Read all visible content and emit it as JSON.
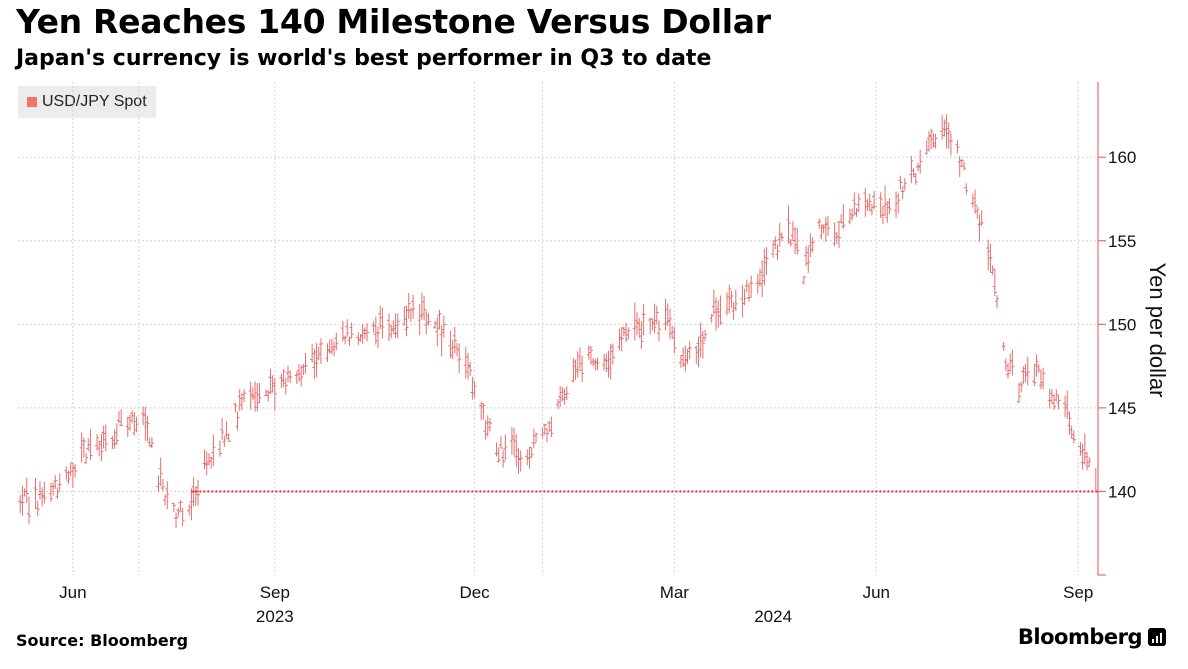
{
  "header": {
    "title": "Yen Reaches 140 Milestone Versus Dollar",
    "subtitle": "Japan's currency is world's best performer in Q3 to date"
  },
  "legend": {
    "label": "USD/JPY Spot",
    "color": "#f07070"
  },
  "footer": {
    "source": "Source: Bloomberg",
    "brand": "Bloomberg",
    "brand_icon": "bloomberg-terminal-icon"
  },
  "colors": {
    "series": "#e46f6f",
    "reference": "#e0303c",
    "axis": "#e46f6f",
    "grid": "#d4d4d4"
  },
  "chart_data": {
    "type": "line",
    "style": "high-low-bars",
    "title": "Yen Reaches 140 Milestone Versus Dollar",
    "subtitle": "Japan's currency is world's best performer in Q3 to date",
    "xlabel": "",
    "ylabel": "Yen per dollar",
    "yaxis_position": "right",
    "ylim": [
      135,
      164.5
    ],
    "yticks": [
      140,
      145,
      150,
      155,
      160
    ],
    "xlim": [
      "2023-05-07",
      "2024-09-10"
    ],
    "month_ticks": [
      {
        "date": "2023-06-01",
        "label": "Jun"
      },
      {
        "date": "2023-07-01",
        "label": ""
      },
      {
        "date": "2023-09-01",
        "label": "Sep"
      },
      {
        "date": "2023-12-01",
        "label": "Dec"
      },
      {
        "date": "2024-01-01",
        "label": ""
      },
      {
        "date": "2024-03-01",
        "label": "Mar"
      },
      {
        "date": "2024-06-01",
        "label": "Jun"
      },
      {
        "date": "2024-09-01",
        "label": "Sep"
      }
    ],
    "year_labels": [
      {
        "date": "2023-09-01",
        "label": "2023"
      },
      {
        "date": "2024-04-15",
        "label": "2024"
      }
    ],
    "grid": true,
    "legend_position": "top-left",
    "reference_line": {
      "value": 140,
      "from": "2023-07-25",
      "to": "2024-09-10",
      "style": "dotted"
    },
    "series": [
      {
        "name": "USD/JPY Spot",
        "points": [
          [
            "2023-05-08",
            139.2
          ],
          [
            "2023-05-15",
            139.6
          ],
          [
            "2023-05-22",
            139.8
          ],
          [
            "2023-05-29",
            140.6
          ],
          [
            "2023-06-05",
            142.2
          ],
          [
            "2023-06-12",
            142.6
          ],
          [
            "2023-06-19",
            143.5
          ],
          [
            "2023-06-26",
            144.5
          ],
          [
            "2023-07-03",
            144.2
          ],
          [
            "2023-07-10",
            141.0
          ],
          [
            "2023-07-17",
            138.8
          ],
          [
            "2023-07-24",
            139.2
          ],
          [
            "2023-07-31",
            141.5
          ],
          [
            "2023-08-07",
            142.8
          ],
          [
            "2023-08-14",
            144.5
          ],
          [
            "2023-08-21",
            145.8
          ],
          [
            "2023-08-28",
            146.0
          ],
          [
            "2023-09-04",
            146.5
          ],
          [
            "2023-09-11",
            147.3
          ],
          [
            "2023-09-18",
            147.8
          ],
          [
            "2023-09-25",
            148.6
          ],
          [
            "2023-10-02",
            149.5
          ],
          [
            "2023-10-09",
            149.3
          ],
          [
            "2023-10-16",
            149.6
          ],
          [
            "2023-10-23",
            149.9
          ],
          [
            "2023-10-30",
            150.5
          ],
          [
            "2023-11-06",
            150.8
          ],
          [
            "2023-11-13",
            150.2
          ],
          [
            "2023-11-20",
            149.2
          ],
          [
            "2023-11-27",
            147.6
          ],
          [
            "2023-12-04",
            145.0
          ],
          [
            "2023-12-11",
            142.3
          ],
          [
            "2023-12-18",
            142.6
          ],
          [
            "2023-12-25",
            141.8
          ],
          [
            "2024-01-01",
            143.5
          ],
          [
            "2024-01-08",
            145.0
          ],
          [
            "2024-01-15",
            147.5
          ],
          [
            "2024-01-22",
            148.2
          ],
          [
            "2024-01-29",
            147.8
          ],
          [
            "2024-02-05",
            148.8
          ],
          [
            "2024-02-12",
            149.6
          ],
          [
            "2024-02-19",
            150.2
          ],
          [
            "2024-02-26",
            150.3
          ],
          [
            "2024-03-04",
            148.0
          ],
          [
            "2024-03-11",
            147.8
          ],
          [
            "2024-03-18",
            150.8
          ],
          [
            "2024-03-25",
            151.3
          ],
          [
            "2024-04-01",
            151.6
          ],
          [
            "2024-04-08",
            152.8
          ],
          [
            "2024-04-15",
            154.3
          ],
          [
            "2024-04-22",
            155.8
          ],
          [
            "2024-04-29",
            153.2
          ],
          [
            "2024-05-06",
            155.6
          ],
          [
            "2024-05-13",
            155.3
          ],
          [
            "2024-05-20",
            156.8
          ],
          [
            "2024-05-27",
            157.2
          ],
          [
            "2024-06-03",
            156.6
          ],
          [
            "2024-06-10",
            157.4
          ],
          [
            "2024-06-17",
            158.8
          ],
          [
            "2024-06-24",
            160.6
          ],
          [
            "2024-07-01",
            161.4
          ],
          [
            "2024-07-08",
            160.4
          ],
          [
            "2024-07-15",
            157.2
          ],
          [
            "2024-07-22",
            154.8
          ],
          [
            "2024-07-29",
            148.2
          ],
          [
            "2024-08-05",
            146.5
          ],
          [
            "2024-08-12",
            147.2
          ],
          [
            "2024-08-19",
            145.8
          ],
          [
            "2024-08-26",
            144.8
          ],
          [
            "2024-09-02",
            142.6
          ],
          [
            "2024-09-09",
            140.8
          ]
        ]
      }
    ]
  }
}
